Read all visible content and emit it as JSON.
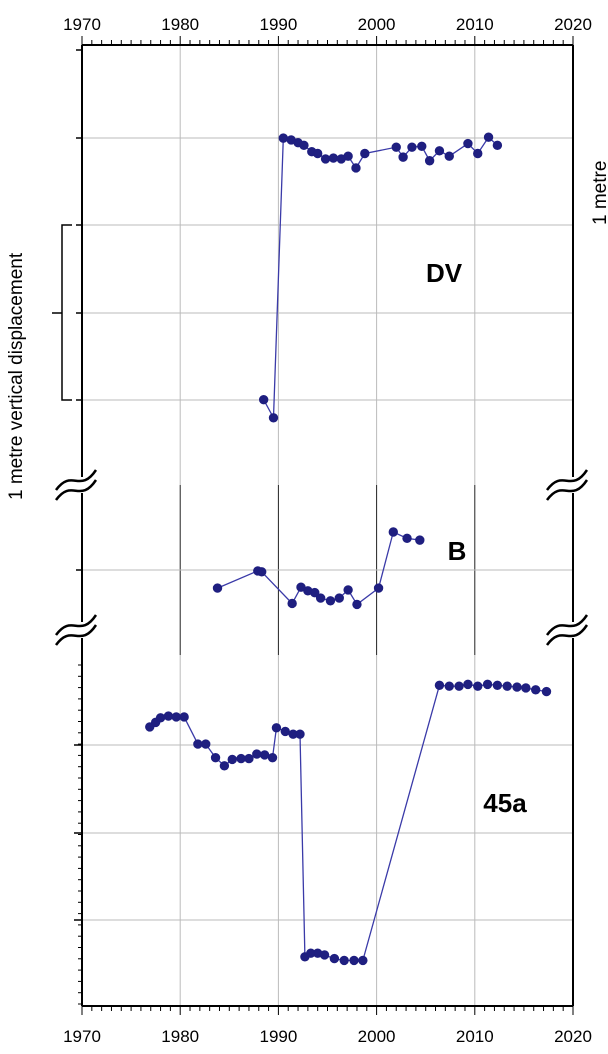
{
  "chart_data": {
    "type": "scatter",
    "title": "",
    "xlim": [
      1970,
      2020
    ],
    "x_ticks": [
      "1970",
      "1980",
      "1990",
      "2000",
      "2010",
      "2020"
    ],
    "grid": true,
    "marker_color": "#1f1f80",
    "line_color": "#3a3aa8",
    "scale_bar_label": "1 metre vertical displacement",
    "clipped_label": "1 metre",
    "panels": [
      {
        "label": "DV",
        "y_units": "metres (relative)",
        "points": [
          [
            1988.5,
            -1.93
          ],
          [
            1989.5,
            -2.13
          ],
          [
            1990.5,
            0.96
          ],
          [
            1991.3,
            0.94
          ],
          [
            1992.0,
            0.91
          ],
          [
            1992.6,
            0.88
          ],
          [
            1993.4,
            0.81
          ],
          [
            1994.0,
            0.79
          ],
          [
            1994.8,
            0.73
          ],
          [
            1995.6,
            0.74
          ],
          [
            1996.4,
            0.73
          ],
          [
            1997.1,
            0.76
          ],
          [
            1997.9,
            0.63
          ],
          [
            1998.8,
            0.79
          ],
          [
            2002.0,
            0.86
          ],
          [
            2002.7,
            0.75
          ],
          [
            2003.6,
            0.86
          ],
          [
            2004.6,
            0.87
          ],
          [
            2005.4,
            0.71
          ],
          [
            2006.4,
            0.82
          ],
          [
            2007.4,
            0.76
          ],
          [
            2009.3,
            0.9
          ],
          [
            2010.3,
            0.79
          ],
          [
            2011.4,
            0.97
          ],
          [
            2012.3,
            0.88
          ]
        ]
      },
      {
        "label": "B",
        "y_units": "metres (relative)",
        "points": [
          [
            1983.8,
            -0.2
          ],
          [
            1987.9,
            -0.01
          ],
          [
            1988.3,
            -0.02
          ],
          [
            1991.4,
            -0.37
          ],
          [
            1992.3,
            -0.19
          ],
          [
            1993.0,
            -0.23
          ],
          [
            1993.7,
            -0.25
          ],
          [
            1994.3,
            -0.31
          ],
          [
            1995.3,
            -0.34
          ],
          [
            1996.2,
            -0.31
          ],
          [
            1997.1,
            -0.22
          ],
          [
            1998.0,
            -0.38
          ],
          [
            2000.2,
            -0.2
          ],
          [
            2001.7,
            0.42
          ],
          [
            2003.1,
            0.35
          ],
          [
            2004.4,
            0.33
          ]
        ]
      },
      {
        "label": "45a",
        "y_units": "metres (relative)",
        "points": [
          [
            1976.9,
            0.2
          ],
          [
            1977.5,
            0.25
          ],
          [
            1978.0,
            0.3
          ],
          [
            1978.8,
            0.32
          ],
          [
            1979.6,
            0.31
          ],
          [
            1980.4,
            0.31
          ],
          [
            1981.8,
            0.01
          ],
          [
            1982.6,
            0.01
          ],
          [
            1983.6,
            -0.14
          ],
          [
            1984.5,
            -0.23
          ],
          [
            1985.3,
            -0.16
          ],
          [
            1986.2,
            -0.15
          ],
          [
            1987.0,
            -0.15
          ],
          [
            1987.8,
            -0.1
          ],
          [
            1988.6,
            -0.11
          ],
          [
            1989.4,
            -0.14
          ],
          [
            1989.8,
            0.19
          ],
          [
            1990.7,
            0.15
          ],
          [
            1991.5,
            0.12
          ],
          [
            1992.2,
            0.12
          ],
          [
            1992.7,
            -2.34
          ],
          [
            1993.3,
            -2.3
          ],
          [
            1994.0,
            -2.3
          ],
          [
            1994.7,
            -2.32
          ],
          [
            1995.7,
            -2.36
          ],
          [
            1996.7,
            -2.38
          ],
          [
            1997.7,
            -2.38
          ],
          [
            1998.6,
            -2.38
          ],
          [
            2006.4,
            0.66
          ],
          [
            2007.4,
            0.65
          ],
          [
            2008.4,
            0.65
          ],
          [
            2009.3,
            0.67
          ],
          [
            2010.3,
            0.65
          ],
          [
            2011.3,
            0.67
          ],
          [
            2012.3,
            0.66
          ],
          [
            2013.3,
            0.65
          ],
          [
            2014.3,
            0.64
          ],
          [
            2015.2,
            0.63
          ],
          [
            2016.2,
            0.61
          ],
          [
            2017.3,
            0.59
          ]
        ]
      }
    ]
  }
}
